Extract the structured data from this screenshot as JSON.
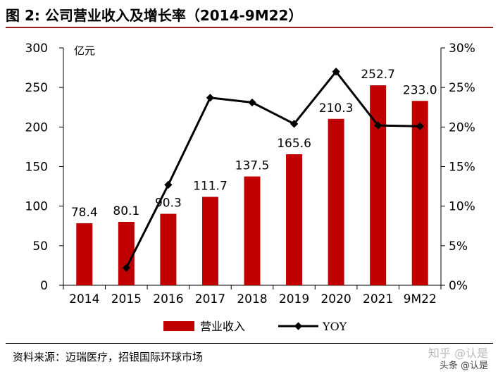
{
  "figure": {
    "title": "图 2: 公司营业收入及增长率（2014-9M22）",
    "source": "资料来源：迈瑞医疗，招银国际环球市场",
    "watermark": "知乎 @认是",
    "watermark2": "头条 @认是"
  },
  "chart_data": {
    "type": "bar",
    "categories": [
      "2014",
      "2015",
      "2016",
      "2017",
      "2018",
      "2019",
      "2020",
      "2021",
      "9M22"
    ],
    "y_unit_label": "亿元",
    "ylim": [
      0,
      300
    ],
    "y_ticks": [
      0,
      50,
      100,
      150,
      200,
      250,
      300
    ],
    "y2lim": [
      0,
      30
    ],
    "y2_ticks": [
      "0%",
      "5%",
      "10%",
      "15%",
      "20%",
      "25%",
      "30%"
    ],
    "grid": false,
    "legend_position": "bottom",
    "series": [
      {
        "name": "营业收入",
        "type": "bar",
        "color": "#c00000",
        "values": [
          78.4,
          80.1,
          90.3,
          111.7,
          137.5,
          165.6,
          210.3,
          252.7,
          233.0
        ],
        "labels": [
          "78.4",
          "80.1",
          "90.3",
          "111.7",
          "137.5",
          "165.6",
          "210.3",
          "252.7",
          "233.0"
        ]
      },
      {
        "name": "YOY",
        "type": "line",
        "axis": "right",
        "color": "#000000",
        "values": [
          null,
          2.2,
          12.7,
          23.7,
          23.1,
          20.4,
          27.0,
          20.2,
          20.1
        ]
      }
    ]
  }
}
